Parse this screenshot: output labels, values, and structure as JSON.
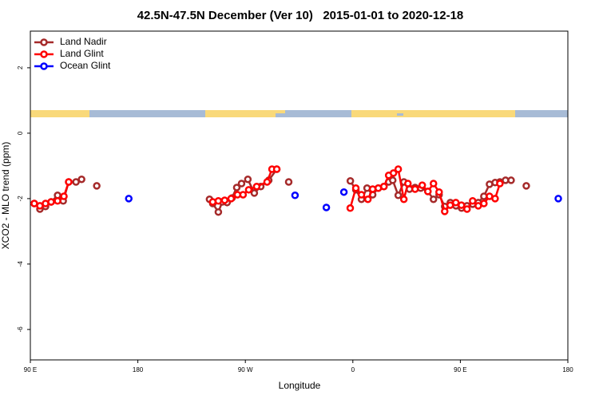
{
  "chart_data": {
    "type": "line",
    "title": "42.5N-47.5N December (Ver 10)   2015-01-01 to 2020-12-18",
    "x_label": "Longitude",
    "y_label": "XCO2 - MLO trend (ppm)",
    "xlim": [
      90,
      540
    ],
    "xticks": [
      {
        "value": 90,
        "label": "90 E"
      },
      180,
      {
        "value": 270,
        "label": "90 W"
      },
      {
        "value": 360,
        "label": "0"
      },
      {
        "value": 450,
        "label": "90 E"
      },
      {
        "value": 540,
        "label": "180"
      }
    ],
    "ylim": [
      -6.93,
      3.12
    ],
    "yticks": [
      -6,
      -4,
      -2,
      0,
      2
    ],
    "legend": "top-left",
    "series": [
      {
        "name": "Land Nadir",
        "color": "#a52a2a",
        "line": true,
        "x": [
          93.3,
          98,
          102.7,
          107.4,
          112.8,
          117.5,
          122.1,
          128.2,
          132.9,
          null,
          145.6,
          null,
          240,
          242.7,
          247.4,
          250.7,
          254.7,
          258.8,
          262.8,
          266.8,
          272.1,
          277.5,
          282.9,
          289.6,
          296.3,
          null,
          306.3,
          null,
          357.9,
          362.5,
          367.2,
          371.9,
          376.6,
          381.3,
          386,
          390,
          393.4,
          398,
          402.7,
          407.4,
          412.1,
          416.8,
          422.8,
          427.5,
          432.2,
          436.9,
          441.6,
          446.3,
          451,
          455.6,
          460.3,
          465,
          469.7,
          474.4,
          479.1,
          483.1,
          487.8,
          492.5,
          null,
          505.2
        ],
        "values": [
          -2.15,
          -2.32,
          -2.24,
          -2.1,
          -1.9,
          -2.07,
          -1.49,
          -1.49,
          -1.41,
          null,
          -1.61,
          null,
          -2.02,
          -2.15,
          -2.41,
          -2.1,
          -2.12,
          -1.98,
          -1.66,
          -1.54,
          -1.41,
          -1.83,
          -1.63,
          -1.44,
          -1.1,
          null,
          -1.49,
          null,
          -1.46,
          -1.73,
          -2.02,
          -1.68,
          -1.88,
          -1.68,
          -1.63,
          -1.49,
          -1.44,
          -1.9,
          -1.49,
          -1.71,
          -1.66,
          -1.68,
          -1.78,
          -2.02,
          -1.88,
          -2.24,
          -2.12,
          -2.22,
          -2.29,
          -2.22,
          -2.17,
          -2.12,
          -1.93,
          -1.56,
          -1.51,
          -1.49,
          -1.44,
          -1.44,
          null,
          -1.61
        ]
      },
      {
        "name": "Land Glint",
        "color": "#ff0000",
        "line": true,
        "x": [
          93.3,
          98,
          102.7,
          107.4,
          112.8,
          118.1,
          122.1,
          null,
          242.7,
          247.4,
          252.7,
          258.1,
          263.4,
          268.1,
          272.8,
          279.5,
          288.2,
          292.3,
          296.3,
          null,
          357.8,
          362.5,
          367.2,
          372.6,
          376.6,
          381.3,
          386,
          390,
          394,
          398,
          402.7,
          406.1,
          412.1,
          418.1,
          422.8,
          427.5,
          432.2,
          436.9,
          441.5,
          446.2,
          450.9,
          455.6,
          460.3,
          465,
          469.7,
          474.4,
          479.1,
          483.1
        ],
        "values": [
          -2.15,
          -2.22,
          -2.15,
          -2.1,
          -2.07,
          -1.93,
          -1.49,
          null,
          -2.1,
          -2.07,
          -2.05,
          -2.0,
          -1.88,
          -1.88,
          -1.73,
          -1.63,
          -1.49,
          -1.1,
          -1.1,
          null,
          -2.29,
          -1.68,
          -1.88,
          -2.02,
          -1.71,
          -1.68,
          -1.63,
          -1.29,
          -1.22,
          -1.1,
          -2.02,
          -1.54,
          -1.71,
          -1.59,
          -1.78,
          -1.54,
          -1.8,
          -2.39,
          -2.2,
          -2.12,
          -2.2,
          -2.32,
          -2.07,
          -2.22,
          -2.15,
          -1.93,
          -2.0,
          -1.54
        ]
      },
      {
        "name": "Ocean Glint",
        "color": "#0000ff",
        "line": false,
        "x": [
          172.4,
          311.6,
          337.8,
          352.5,
          532
        ],
        "values": [
          -2.0,
          -1.9,
          -2.27,
          -1.8,
          -2.0
        ]
      }
    ]
  }
}
